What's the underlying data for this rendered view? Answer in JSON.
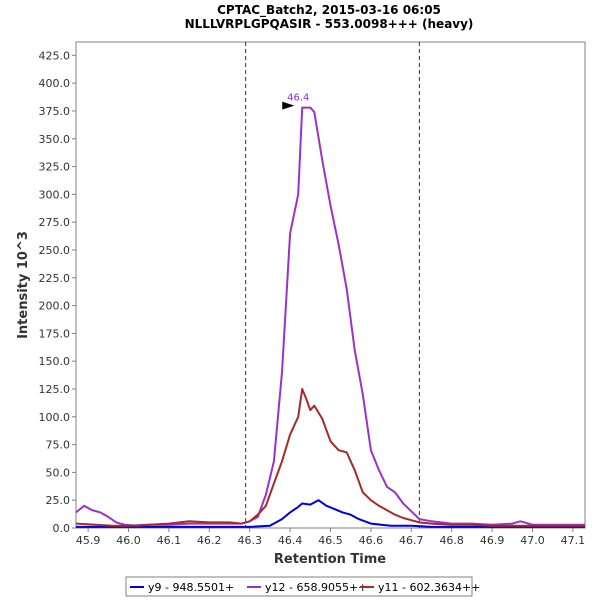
{
  "chart_data": {
    "type": "line",
    "title": "CPTAC_Batch2, 2015-03-16 06:05",
    "subtitle": "NLLLVRPLGPQASIR - 553.0098+++ (heavy)",
    "xlabel": "Retention Time",
    "ylabel": "Intensity 10^3",
    "xlim": [
      45.87,
      47.13
    ],
    "ylim": [
      0,
      437
    ],
    "x_ticks": [
      "45.9",
      "46.0",
      "46.1",
      "46.2",
      "46.3",
      "46.4",
      "46.5",
      "46.6",
      "46.7",
      "46.8",
      "46.9",
      "47.0",
      "47.1"
    ],
    "y_ticks": [
      "0.0",
      "25.0",
      "50.0",
      "75.0",
      "100.0",
      "125.0",
      "150.0",
      "175.0",
      "200.0",
      "225.0",
      "250.0",
      "275.0",
      "300.0",
      "325.0",
      "350.0",
      "375.0",
      "400.0",
      "425.0"
    ],
    "grid": false,
    "legend_position": "bottom",
    "boundaries": [
      46.29,
      46.72
    ],
    "annotation": {
      "label": "46.4",
      "x": 46.44,
      "y": 378,
      "color": "#8a2be2"
    },
    "series": [
      {
        "name": "y9 - 948.5501+",
        "color": "#0000dd",
        "x": [
          45.87,
          45.95,
          46.0,
          46.1,
          46.2,
          46.25,
          46.3,
          46.35,
          46.38,
          46.4,
          46.42,
          46.43,
          46.45,
          46.47,
          46.49,
          46.51,
          46.53,
          46.55,
          46.57,
          46.6,
          46.65,
          46.7,
          46.75,
          46.8,
          46.9,
          47.0,
          47.13
        ],
        "y": [
          1,
          1,
          1,
          1,
          1,
          1,
          1,
          2,
          8,
          14,
          19,
          22,
          21,
          25,
          20,
          17,
          14,
          12,
          8,
          4,
          2,
          2,
          1,
          1,
          1,
          1,
          1
        ]
      },
      {
        "name": "y12 - 658.9055++",
        "color": "#9932cc",
        "x": [
          45.87,
          45.89,
          45.91,
          45.93,
          45.95,
          45.97,
          45.99,
          46.02,
          46.05,
          46.1,
          46.15,
          46.2,
          46.25,
          46.28,
          46.3,
          46.32,
          46.34,
          46.36,
          46.38,
          46.4,
          46.42,
          46.43,
          46.44,
          46.45,
          46.46,
          46.48,
          46.5,
          46.52,
          46.54,
          46.56,
          46.58,
          46.6,
          46.62,
          46.64,
          46.66,
          46.68,
          46.7,
          46.72,
          46.75,
          46.8,
          46.85,
          46.9,
          46.95,
          46.97,
          47.0,
          47.05,
          47.1,
          47.13
        ],
        "y": [
          14,
          20,
          16,
          14,
          10,
          5,
          3,
          2,
          3,
          3,
          4,
          4,
          4,
          4,
          6,
          10,
          30,
          60,
          140,
          265,
          300,
          378,
          378,
          378,
          374,
          330,
          290,
          255,
          215,
          160,
          120,
          70,
          52,
          37,
          32,
          22,
          15,
          8,
          6,
          4,
          4,
          3,
          4,
          6,
          3,
          3,
          3,
          3
        ]
      },
      {
        "name": "y11 - 602.3634++",
        "color": "#a52a2a",
        "x": [
          45.87,
          45.92,
          45.96,
          46.0,
          46.05,
          46.1,
          46.15,
          46.2,
          46.25,
          46.28,
          46.3,
          46.32,
          46.34,
          46.36,
          46.38,
          46.4,
          46.42,
          46.43,
          46.44,
          46.45,
          46.46,
          46.48,
          46.5,
          46.52,
          46.54,
          46.55,
          46.56,
          46.58,
          46.6,
          46.62,
          46.64,
          46.66,
          46.68,
          46.7,
          46.72,
          46.75,
          46.8,
          46.85,
          46.9,
          46.95,
          47.0,
          47.05,
          47.1,
          47.13
        ],
        "y": [
          4,
          3,
          2,
          2,
          3,
          4,
          6,
          5,
          5,
          4,
          6,
          12,
          20,
          40,
          60,
          84,
          100,
          125,
          116,
          106,
          110,
          98,
          78,
          70,
          68,
          60,
          52,
          32,
          25,
          20,
          16,
          12,
          9,
          7,
          5,
          4,
          3,
          3,
          2,
          2,
          2,
          2,
          2,
          2
        ]
      }
    ]
  }
}
